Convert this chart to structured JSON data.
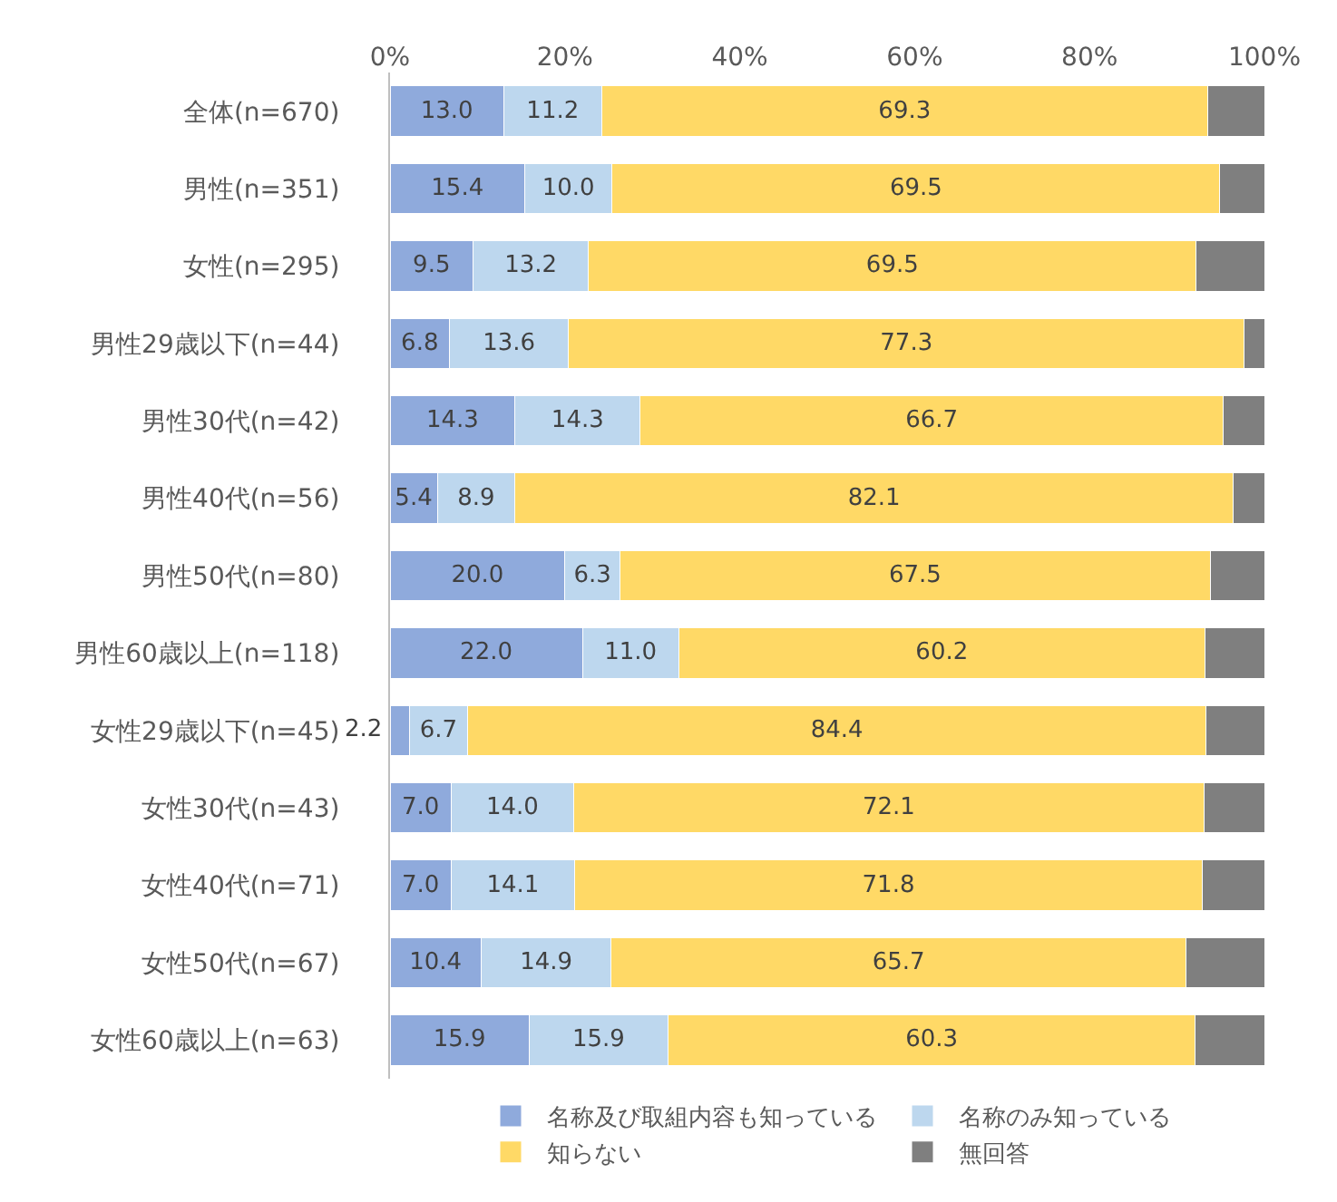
{
  "chart_data": {
    "type": "bar",
    "orientation": "horizontal",
    "stacked": true,
    "categories": [
      "全体(n=670)",
      "男性(n=351)",
      "女性(n=295)",
      "男性29歳以下(n=44)",
      "男性30代(n=42)",
      "男性40代(n=56)",
      "男性50代(n=80)",
      "男性60歳以上(n=118)",
      "女性29歳以下(n=45)",
      "女性30代(n=43)",
      "女性40代(n=71)",
      "女性50代(n=67)",
      "女性60歳以上(n=63)"
    ],
    "series": [
      {
        "name": "名称及び取組内容も知っている",
        "color": "#8faadc",
        "values": [
          13.0,
          15.4,
          9.5,
          6.8,
          14.3,
          5.4,
          20.0,
          22.0,
          2.2,
          7.0,
          7.0,
          10.4,
          15.9
        ],
        "value_labels": [
          "13.0",
          "15.4",
          "9.5",
          "6.8",
          "14.3",
          "5.4",
          "20.0",
          "22.0",
          "2.2",
          "7.0",
          "7.0",
          "10.4",
          "15.9"
        ]
      },
      {
        "name": "名称のみ知っている",
        "color": "#bdd7ee",
        "values": [
          11.2,
          10.0,
          13.2,
          13.6,
          14.3,
          8.9,
          6.3,
          11.0,
          6.7,
          14.0,
          14.1,
          14.9,
          15.9
        ],
        "value_labels": [
          "11.2",
          "10.0",
          "13.2",
          "13.6",
          "14.3",
          "8.9",
          "6.3",
          "11.0",
          "6.7",
          "14.0",
          "14.1",
          "14.9",
          "15.9"
        ]
      },
      {
        "name": "知らない",
        "color": "#ffd966",
        "values": [
          69.3,
          69.5,
          69.5,
          77.3,
          66.7,
          82.1,
          67.5,
          60.2,
          84.4,
          72.1,
          71.8,
          65.7,
          60.3
        ],
        "value_labels": [
          "69.3",
          "69.5",
          "69.5",
          "77.3",
          "66.7",
          "82.1",
          "67.5",
          "60.2",
          "84.4",
          "72.1",
          "71.8",
          "65.7",
          "60.3"
        ]
      },
      {
        "name": "無回答",
        "color": "#7f7f7f",
        "values": [
          6.5,
          5.1,
          7.8,
          2.3,
          4.7,
          3.6,
          6.2,
          6.8,
          6.7,
          6.9,
          7.1,
          9.0,
          7.9
        ]
      }
    ],
    "xlim": [
      0,
      100
    ],
    "xticks": [
      {
        "value": 0,
        "label": "0%"
      },
      {
        "value": 20,
        "label": "20%"
      },
      {
        "value": 40,
        "label": "40%"
      },
      {
        "value": 60,
        "label": "60%"
      },
      {
        "value": 80,
        "label": "80%"
      },
      {
        "value": 100,
        "label": "100%"
      }
    ],
    "grid": false,
    "legend": "bottom"
  }
}
